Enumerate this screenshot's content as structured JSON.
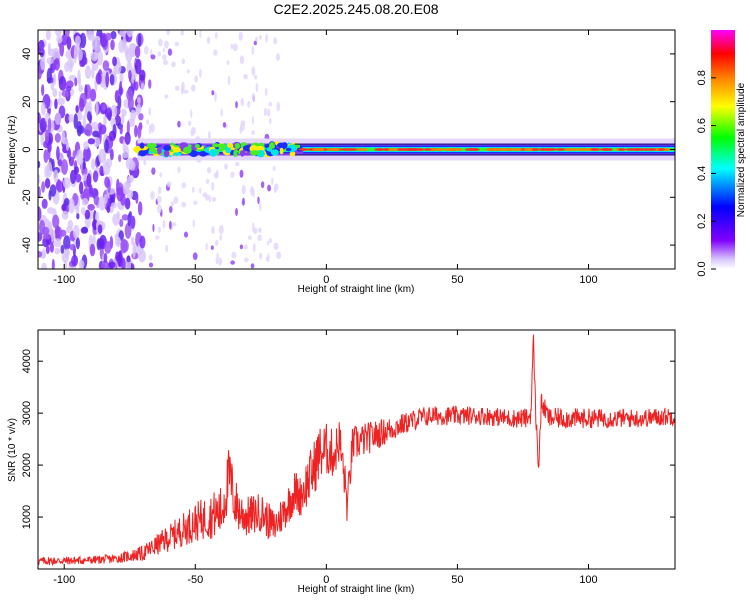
{
  "chart_data": [
    {
      "type": "heatmap",
      "title": "C2E2.2025.245.08.20.E08",
      "xlabel": "Height of straight line (km)",
      "ylabel": "Frequency (Hz)",
      "xlim": [
        -110,
        133
      ],
      "ylim": [
        -50,
        50
      ],
      "xticks": [
        "-100",
        "-50",
        "0",
        "50",
        "100"
      ],
      "yticks": [
        "-40",
        "-20",
        "0",
        "20",
        "40"
      ],
      "colorbar": {
        "label": "Normalized spectral amplitude",
        "range": [
          0,
          1
        ],
        "ticks": [
          "0.0",
          "0.2",
          "0.4",
          "0.6",
          "0.8"
        ],
        "colors": [
          "#ffffff",
          "#8000ff",
          "#0000ff",
          "#00ffff",
          "#00ff00",
          "#ffff00",
          "#ff8000",
          "#ff0000",
          "#ff00ff"
        ]
      },
      "features": {
        "noise_region_x": [
          -110,
          -70
        ],
        "signal_start_x": -72,
        "signal_center_freq_hz": 0,
        "dominant_color": "#7b2ff7"
      }
    },
    {
      "type": "line",
      "title": "",
      "xlabel": "Height of straight line (km)",
      "ylabel": "SNR (10 * v/v)",
      "xlim": [
        -110,
        133
      ],
      "ylim": [
        0,
        4600
      ],
      "xticks": [
        "-100",
        "-50",
        "0",
        "50",
        "100"
      ],
      "yticks": [
        "1000",
        "2000",
        "3000",
        "4000"
      ],
      "series": [
        {
          "name": "SNR",
          "color": "#ee2222",
          "x": [
            -110,
            -100,
            -90,
            -80,
            -75,
            -70,
            -65,
            -60,
            -55,
            -50,
            -45,
            -40,
            -37,
            -35,
            -33,
            -30,
            -25,
            -20,
            -15,
            -12,
            -10,
            -7,
            -5,
            -3,
            0,
            3,
            5,
            7,
            8,
            10,
            15,
            20,
            25,
            30,
            35,
            40,
            50,
            60,
            70,
            75,
            77,
            78,
            79,
            80,
            81,
            82,
            85,
            90,
            100,
            110,
            120,
            133
          ],
          "values": [
            150,
            160,
            170,
            200,
            250,
            300,
            450,
            600,
            750,
            900,
            1000,
            1100,
            1800,
            1300,
            1100,
            1000,
            1100,
            800,
            1200,
            1500,
            1400,
            1700,
            1900,
            2200,
            2300,
            2200,
            2500,
            1700,
            1200,
            2400,
            2500,
            2600,
            2700,
            2800,
            2900,
            2950,
            2950,
            2950,
            2900,
            2900,
            2900,
            3000,
            4400,
            2800,
            2000,
            3200,
            2900,
            2900,
            2900,
            2900,
            2900,
            2950
          ],
          "noise_amplitude": [
            80,
            80,
            80,
            90,
            110,
            150,
            200,
            260,
            320,
            380,
            420,
            520,
            600,
            500,
            440,
            400,
            380,
            340,
            380,
            420,
            400,
            500,
            540,
            560,
            520,
            460,
            440,
            420,
            380,
            360,
            320,
            280,
            240,
            210,
            200,
            190,
            180,
            180,
            180,
            190,
            200,
            200,
            200,
            200,
            200,
            200,
            200,
            200,
            190,
            180,
            180,
            180
          ]
        }
      ]
    }
  ]
}
